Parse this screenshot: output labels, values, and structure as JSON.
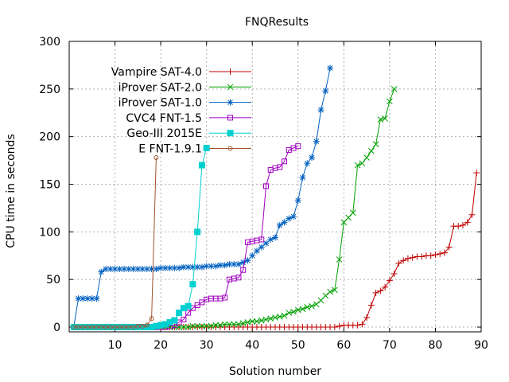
{
  "chart_data": {
    "type": "line",
    "title": "FNQResults",
    "xlabel": "Solution number",
    "ylabel": "CPU time in seconds",
    "xlim": [
      0,
      90
    ],
    "ylim": [
      -5,
      300
    ],
    "xticks": [
      10,
      20,
      30,
      40,
      50,
      60,
      70,
      80,
      90
    ],
    "yticks": [
      0,
      50,
      100,
      150,
      200,
      250,
      300
    ],
    "grid": true,
    "legend_position": "top-left",
    "series": [
      {
        "name": "Vampire SAT-4.0",
        "color": "#c00000",
        "marker": "plus",
        "values": [
          [
            1,
            0
          ],
          [
            2,
            0
          ],
          [
            3,
            0
          ],
          [
            4,
            0
          ],
          [
            5,
            0
          ],
          [
            6,
            0
          ],
          [
            7,
            0
          ],
          [
            8,
            0
          ],
          [
            9,
            0
          ],
          [
            10,
            0
          ],
          [
            11,
            0
          ],
          [
            12,
            0
          ],
          [
            13,
            0
          ],
          [
            14,
            0
          ],
          [
            15,
            0
          ],
          [
            16,
            0
          ],
          [
            17,
            0
          ],
          [
            18,
            0
          ],
          [
            19,
            0
          ],
          [
            20,
            0
          ],
          [
            21,
            0
          ],
          [
            22,
            0
          ],
          [
            23,
            0
          ],
          [
            24,
            0
          ],
          [
            25,
            0
          ],
          [
            26,
            0
          ],
          [
            27,
            0
          ],
          [
            28,
            0
          ],
          [
            29,
            0
          ],
          [
            30,
            0
          ],
          [
            31,
            0
          ],
          [
            32,
            0
          ],
          [
            33,
            0
          ],
          [
            34,
            0
          ],
          [
            35,
            0
          ],
          [
            36,
            0
          ],
          [
            37,
            0
          ],
          [
            38,
            0
          ],
          [
            39,
            0
          ],
          [
            40,
            0
          ],
          [
            41,
            0
          ],
          [
            42,
            0
          ],
          [
            43,
            0
          ],
          [
            44,
            0
          ],
          [
            45,
            0
          ],
          [
            46,
            0
          ],
          [
            47,
            0
          ],
          [
            48,
            0
          ],
          [
            49,
            0
          ],
          [
            50,
            0
          ],
          [
            51,
            0
          ],
          [
            52,
            0
          ],
          [
            53,
            0
          ],
          [
            54,
            0
          ],
          [
            55,
            0
          ],
          [
            56,
            0
          ],
          [
            57,
            0
          ],
          [
            58,
            0
          ],
          [
            59,
            1
          ],
          [
            60,
            2
          ],
          [
            61,
            2
          ],
          [
            62,
            2
          ],
          [
            63,
            2
          ],
          [
            64,
            3
          ],
          [
            65,
            10
          ],
          [
            66,
            23
          ],
          [
            67,
            36
          ],
          [
            68,
            38
          ],
          [
            69,
            42
          ],
          [
            70,
            49
          ],
          [
            71,
            56
          ],
          [
            72,
            67
          ],
          [
            73,
            70
          ],
          [
            74,
            72
          ],
          [
            75,
            73
          ],
          [
            76,
            74
          ],
          [
            77,
            74
          ],
          [
            78,
            75
          ],
          [
            79,
            75
          ],
          [
            80,
            76
          ],
          [
            81,
            77
          ],
          [
            82,
            78
          ],
          [
            83,
            84
          ],
          [
            84,
            106
          ],
          [
            85,
            106
          ],
          [
            86,
            107
          ],
          [
            87,
            110
          ],
          [
            88,
            118
          ],
          [
            89,
            162
          ]
        ]
      },
      {
        "name": "iProver SAT-2.0",
        "color": "#00a000",
        "marker": "x",
        "values": [
          [
            1,
            0
          ],
          [
            2,
            0
          ],
          [
            3,
            0
          ],
          [
            4,
            0
          ],
          [
            5,
            0
          ],
          [
            6,
            0
          ],
          [
            7,
            0
          ],
          [
            8,
            0
          ],
          [
            9,
            0
          ],
          [
            10,
            0
          ],
          [
            11,
            0
          ],
          [
            12,
            0
          ],
          [
            13,
            0
          ],
          [
            14,
            0
          ],
          [
            15,
            0
          ],
          [
            16,
            0
          ],
          [
            17,
            0
          ],
          [
            18,
            0
          ],
          [
            19,
            0
          ],
          [
            20,
            0
          ],
          [
            21,
            0
          ],
          [
            22,
            0
          ],
          [
            23,
            0
          ],
          [
            24,
            0
          ],
          [
            25,
            0
          ],
          [
            26,
            0
          ],
          [
            27,
            1
          ],
          [
            28,
            1
          ],
          [
            29,
            1
          ],
          [
            30,
            1
          ],
          [
            31,
            1
          ],
          [
            32,
            2
          ],
          [
            33,
            2
          ],
          [
            34,
            3
          ],
          [
            35,
            3
          ],
          [
            36,
            3
          ],
          [
            37,
            3
          ],
          [
            38,
            4
          ],
          [
            39,
            5
          ],
          [
            40,
            6
          ],
          [
            41,
            6
          ],
          [
            42,
            7
          ],
          [
            43,
            8
          ],
          [
            44,
            9
          ],
          [
            45,
            10
          ],
          [
            46,
            11
          ],
          [
            47,
            12
          ],
          [
            48,
            15
          ],
          [
            49,
            16
          ],
          [
            50,
            18
          ],
          [
            51,
            19
          ],
          [
            52,
            21
          ],
          [
            53,
            22
          ],
          [
            54,
            24
          ],
          [
            55,
            28
          ],
          [
            56,
            33
          ],
          [
            57,
            37
          ],
          [
            58,
            39
          ],
          [
            59,
            71
          ],
          [
            60,
            110
          ],
          [
            61,
            115
          ],
          [
            62,
            120
          ],
          [
            63,
            170
          ],
          [
            64,
            172
          ],
          [
            65,
            178
          ],
          [
            66,
            185
          ],
          [
            67,
            192
          ],
          [
            68,
            218
          ],
          [
            69,
            219
          ],
          [
            70,
            237
          ],
          [
            71,
            250
          ]
        ]
      },
      {
        "name": "iProver SAT-1.0",
        "color": "#0060c0",
        "marker": "star",
        "values": [
          [
            1,
            0
          ],
          [
            2,
            30
          ],
          [
            3,
            30
          ],
          [
            4,
            30
          ],
          [
            5,
            30
          ],
          [
            6,
            30
          ],
          [
            7,
            58
          ],
          [
            8,
            61
          ],
          [
            9,
            61
          ],
          [
            10,
            61
          ],
          [
            11,
            61
          ],
          [
            12,
            61
          ],
          [
            13,
            61
          ],
          [
            14,
            61
          ],
          [
            15,
            61
          ],
          [
            16,
            61
          ],
          [
            17,
            61
          ],
          [
            18,
            61
          ],
          [
            19,
            61
          ],
          [
            20,
            62
          ],
          [
            21,
            62
          ],
          [
            22,
            62
          ],
          [
            23,
            62
          ],
          [
            24,
            62
          ],
          [
            25,
            63
          ],
          [
            26,
            63
          ],
          [
            27,
            63
          ],
          [
            28,
            63
          ],
          [
            29,
            63
          ],
          [
            30,
            64
          ],
          [
            31,
            64
          ],
          [
            32,
            64
          ],
          [
            33,
            65
          ],
          [
            34,
            65
          ],
          [
            35,
            66
          ],
          [
            36,
            66
          ],
          [
            37,
            66
          ],
          [
            38,
            68
          ],
          [
            39,
            70
          ],
          [
            40,
            75
          ],
          [
            41,
            80
          ],
          [
            42,
            84
          ],
          [
            43,
            88
          ],
          [
            44,
            92
          ],
          [
            45,
            94
          ],
          [
            46,
            107
          ],
          [
            47,
            110
          ],
          [
            48,
            114
          ],
          [
            49,
            116
          ],
          [
            50,
            133
          ],
          [
            51,
            157
          ],
          [
            52,
            172
          ],
          [
            53,
            178
          ],
          [
            54,
            195
          ],
          [
            55,
            228
          ],
          [
            56,
            248
          ],
          [
            57,
            272
          ]
        ]
      },
      {
        "name": "CVC4 FNT-1.5",
        "color": "#a000c0",
        "marker": "square",
        "values": [
          [
            1,
            0
          ],
          [
            2,
            0
          ],
          [
            3,
            0
          ],
          [
            4,
            0
          ],
          [
            5,
            0
          ],
          [
            6,
            0
          ],
          [
            7,
            0
          ],
          [
            8,
            0
          ],
          [
            9,
            0
          ],
          [
            10,
            0
          ],
          [
            11,
            0
          ],
          [
            12,
            0
          ],
          [
            13,
            0
          ],
          [
            14,
            0
          ],
          [
            15,
            0
          ],
          [
            16,
            0
          ],
          [
            17,
            0
          ],
          [
            18,
            0
          ],
          [
            19,
            0
          ],
          [
            20,
            0
          ],
          [
            21,
            0
          ],
          [
            22,
            1
          ],
          [
            23,
            2
          ],
          [
            24,
            5
          ],
          [
            25,
            8
          ],
          [
            26,
            15
          ],
          [
            27,
            20
          ],
          [
            28,
            23
          ],
          [
            29,
            26
          ],
          [
            30,
            29
          ],
          [
            31,
            30
          ],
          [
            32,
            30
          ],
          [
            33,
            30
          ],
          [
            34,
            31
          ],
          [
            35,
            50
          ],
          [
            36,
            51
          ],
          [
            37,
            52
          ],
          [
            38,
            60
          ],
          [
            39,
            89
          ],
          [
            40,
            90
          ],
          [
            41,
            91
          ],
          [
            42,
            92
          ],
          [
            43,
            148
          ],
          [
            44,
            165
          ],
          [
            45,
            167
          ],
          [
            46,
            168
          ],
          [
            47,
            174
          ],
          [
            48,
            186
          ],
          [
            49,
            188
          ],
          [
            50,
            190
          ]
        ]
      },
      {
        "name": "Geo-III 2015E",
        "color": "#00d0d0",
        "marker": "filled-square",
        "values": [
          [
            1,
            0
          ],
          [
            2,
            0
          ],
          [
            3,
            0
          ],
          [
            4,
            0
          ],
          [
            5,
            0
          ],
          [
            6,
            0
          ],
          [
            7,
            0
          ],
          [
            8,
            0
          ],
          [
            9,
            0
          ],
          [
            10,
            0
          ],
          [
            11,
            0
          ],
          [
            12,
            0
          ],
          [
            13,
            0
          ],
          [
            14,
            0
          ],
          [
            15,
            0
          ],
          [
            16,
            0
          ],
          [
            17,
            0
          ],
          [
            18,
            0
          ],
          [
            19,
            1
          ],
          [
            20,
            2
          ],
          [
            21,
            3
          ],
          [
            22,
            5
          ],
          [
            23,
            7
          ],
          [
            24,
            15
          ],
          [
            25,
            20
          ],
          [
            26,
            22
          ],
          [
            27,
            45
          ],
          [
            28,
            100
          ],
          [
            29,
            170
          ],
          [
            30,
            188
          ]
        ]
      },
      {
        "name": "E FNT-1.9.1",
        "color": "#a0522d",
        "marker": "circle",
        "values": [
          [
            1,
            0
          ],
          [
            2,
            0
          ],
          [
            3,
            0
          ],
          [
            4,
            0
          ],
          [
            5,
            0
          ],
          [
            6,
            0
          ],
          [
            7,
            0
          ],
          [
            8,
            0
          ],
          [
            9,
            0
          ],
          [
            10,
            0
          ],
          [
            11,
            0
          ],
          [
            12,
            0
          ],
          [
            13,
            0
          ],
          [
            14,
            0
          ],
          [
            15,
            1
          ],
          [
            16,
            1
          ],
          [
            17,
            2
          ],
          [
            18,
            9
          ],
          [
            19,
            178
          ]
        ]
      }
    ]
  }
}
